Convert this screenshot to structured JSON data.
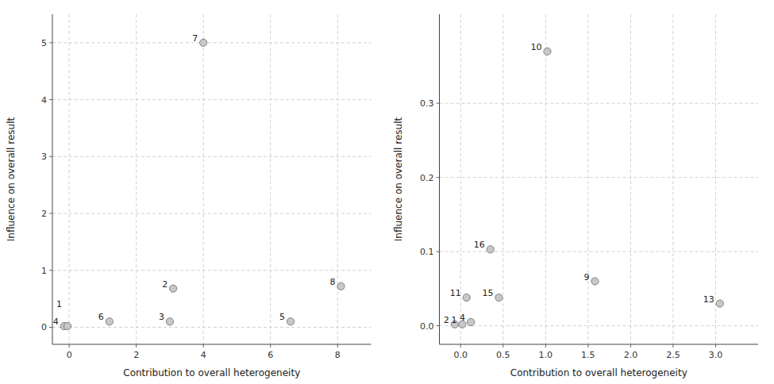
{
  "chart_data": [
    {
      "type": "scatter",
      "x": [
        -0.15,
        -0.05,
        1.2,
        3.1,
        3.0,
        4.0,
        6.6,
        8.1
      ],
      "values": [
        0.02,
        0.02,
        0.1,
        0.68,
        0.1,
        5.0,
        0.1,
        0.72
      ],
      "labels": [
        "4",
        "1",
        "6",
        "2",
        "3",
        "7",
        "5",
        "8"
      ],
      "xlabel": "Contribution to overall heterogeneity",
      "ylabel": "Influence on overall result",
      "xlim": [
        -0.5,
        9.0
      ],
      "ylim": [
        -0.3,
        5.5
      ],
      "xticks": [
        0,
        2,
        4,
        6,
        8
      ],
      "yticks": [
        0,
        1,
        2,
        3,
        4,
        5
      ],
      "grid": true,
      "color": "#c8c8c8"
    },
    {
      "type": "scatter",
      "x": [
        -0.07,
        0.02,
        0.12,
        0.07,
        0.45,
        0.35,
        1.02,
        1.58,
        3.05
      ],
      "values": [
        0.002,
        0.002,
        0.005,
        0.038,
        0.038,
        0.103,
        0.37,
        0.06,
        0.03
      ],
      "labels": [
        "2",
        "1",
        "4",
        "11",
        "15",
        "16",
        "10",
        "9",
        "13"
      ],
      "xlabel": "Contribution to overall heterogeneity",
      "ylabel": "Influence on overall result",
      "xlim": [
        -0.25,
        3.5
      ],
      "ylim": [
        -0.025,
        0.42
      ],
      "xticks": [
        {
          "value": 0,
          "label": "0.0"
        },
        0.5,
        {
          "value": 1,
          "label": "1.0"
        },
        1.5,
        {
          "value": 2,
          "label": "2.0"
        },
        2.5,
        {
          "value": 3,
          "label": "3.0"
        }
      ],
      "yticks": [
        {
          "value": 0,
          "label": "0.0"
        },
        0.1,
        0.2,
        0.3
      ],
      "grid": true,
      "color": "#c8c8c8"
    }
  ]
}
